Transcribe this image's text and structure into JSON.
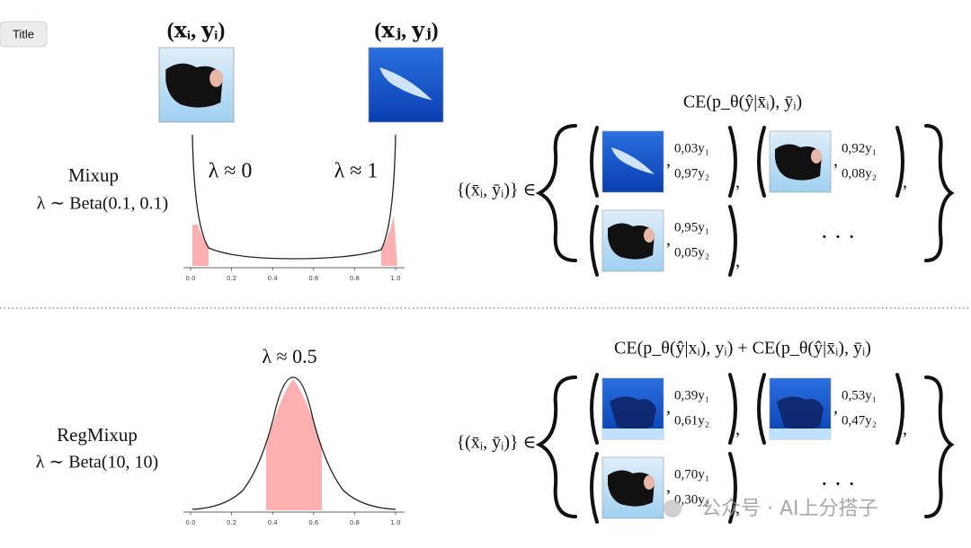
{
  "button": "Title",
  "mixup": {
    "pair_i": "(𝐱ᵢ, 𝐲ᵢ)",
    "pair_j": "(𝐱ⱼ, 𝐲ⱼ)",
    "name": "Mixup",
    "distribution": "λ ∼ Beta(0.1, 0.1)",
    "annotation_left": "λ ≈ 0",
    "annotation_right": "λ ≈ 1",
    "ticks": [
      "0.0",
      "0.2",
      "0.4",
      "0.6",
      "0.8",
      "1.0"
    ],
    "objective": "CE(p_θ(ŷ|x̄ᵢ), ȳᵢ)",
    "set_prefix": "{(x̄ᵢ, ȳᵢ)} ∈",
    "items": [
      [
        "0,03y₁",
        "0,97y₂"
      ],
      [
        "0,92y₁",
        "0,08y₂"
      ],
      [
        "0,95y₁",
        "0,05y₂"
      ]
    ],
    "ellipsis": "· · ·"
  },
  "regmixup": {
    "name": "RegMixup",
    "distribution": "λ ∼ Beta(10, 10)",
    "annotation": "λ ≈ 0.5",
    "ticks": [
      "0.0",
      "0.2",
      "0.4",
      "0.6",
      "0.8",
      "1.0"
    ],
    "objective": "CE(p_θ(ŷ|xᵢ), yᵢ) + CE(p_θ(ŷ|x̄ᵢ), ȳᵢ)",
    "set_prefix": "{(x̄ᵢ, ȳᵢ)} ∈",
    "items": [
      [
        "0,39y₁",
        "0,61y₂"
      ],
      [
        "0,53y₁",
        "0,47y₂"
      ],
      [
        "0,70y₁",
        "0,30y₂"
      ]
    ],
    "ellipsis": "· · ·"
  },
  "watermark": "公众号 · AI上分搭子"
}
